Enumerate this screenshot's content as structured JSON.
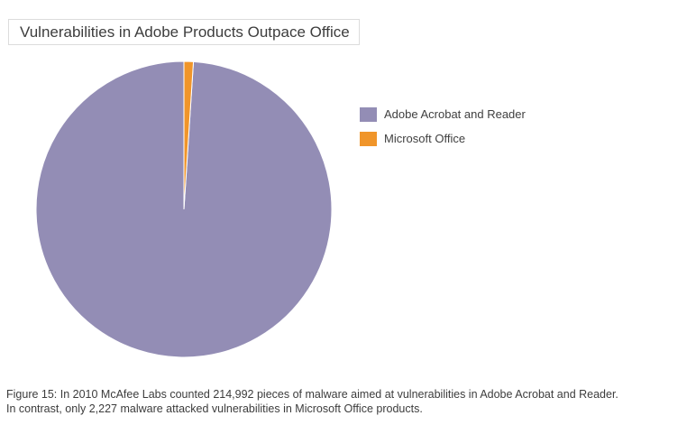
{
  "chart_data": {
    "type": "pie",
    "title": "Vulnerabilities in Adobe Products Outpace Office",
    "categories": [
      "Adobe Acrobat and Reader",
      "Microsoft Office"
    ],
    "values": [
      214992,
      2227
    ],
    "colors": [
      "#938db5",
      "#f0952a"
    ],
    "legend_position": "right"
  },
  "caption": {
    "line1": "Figure 15: In 2010 McAfee Labs counted 214,992 pieces of malware aimed at vulnerabilities in Adobe Acrobat and Reader.",
    "line2": "In contrast, only 2,227 malware attacked vulnerabilities in Microsoft Office products."
  }
}
